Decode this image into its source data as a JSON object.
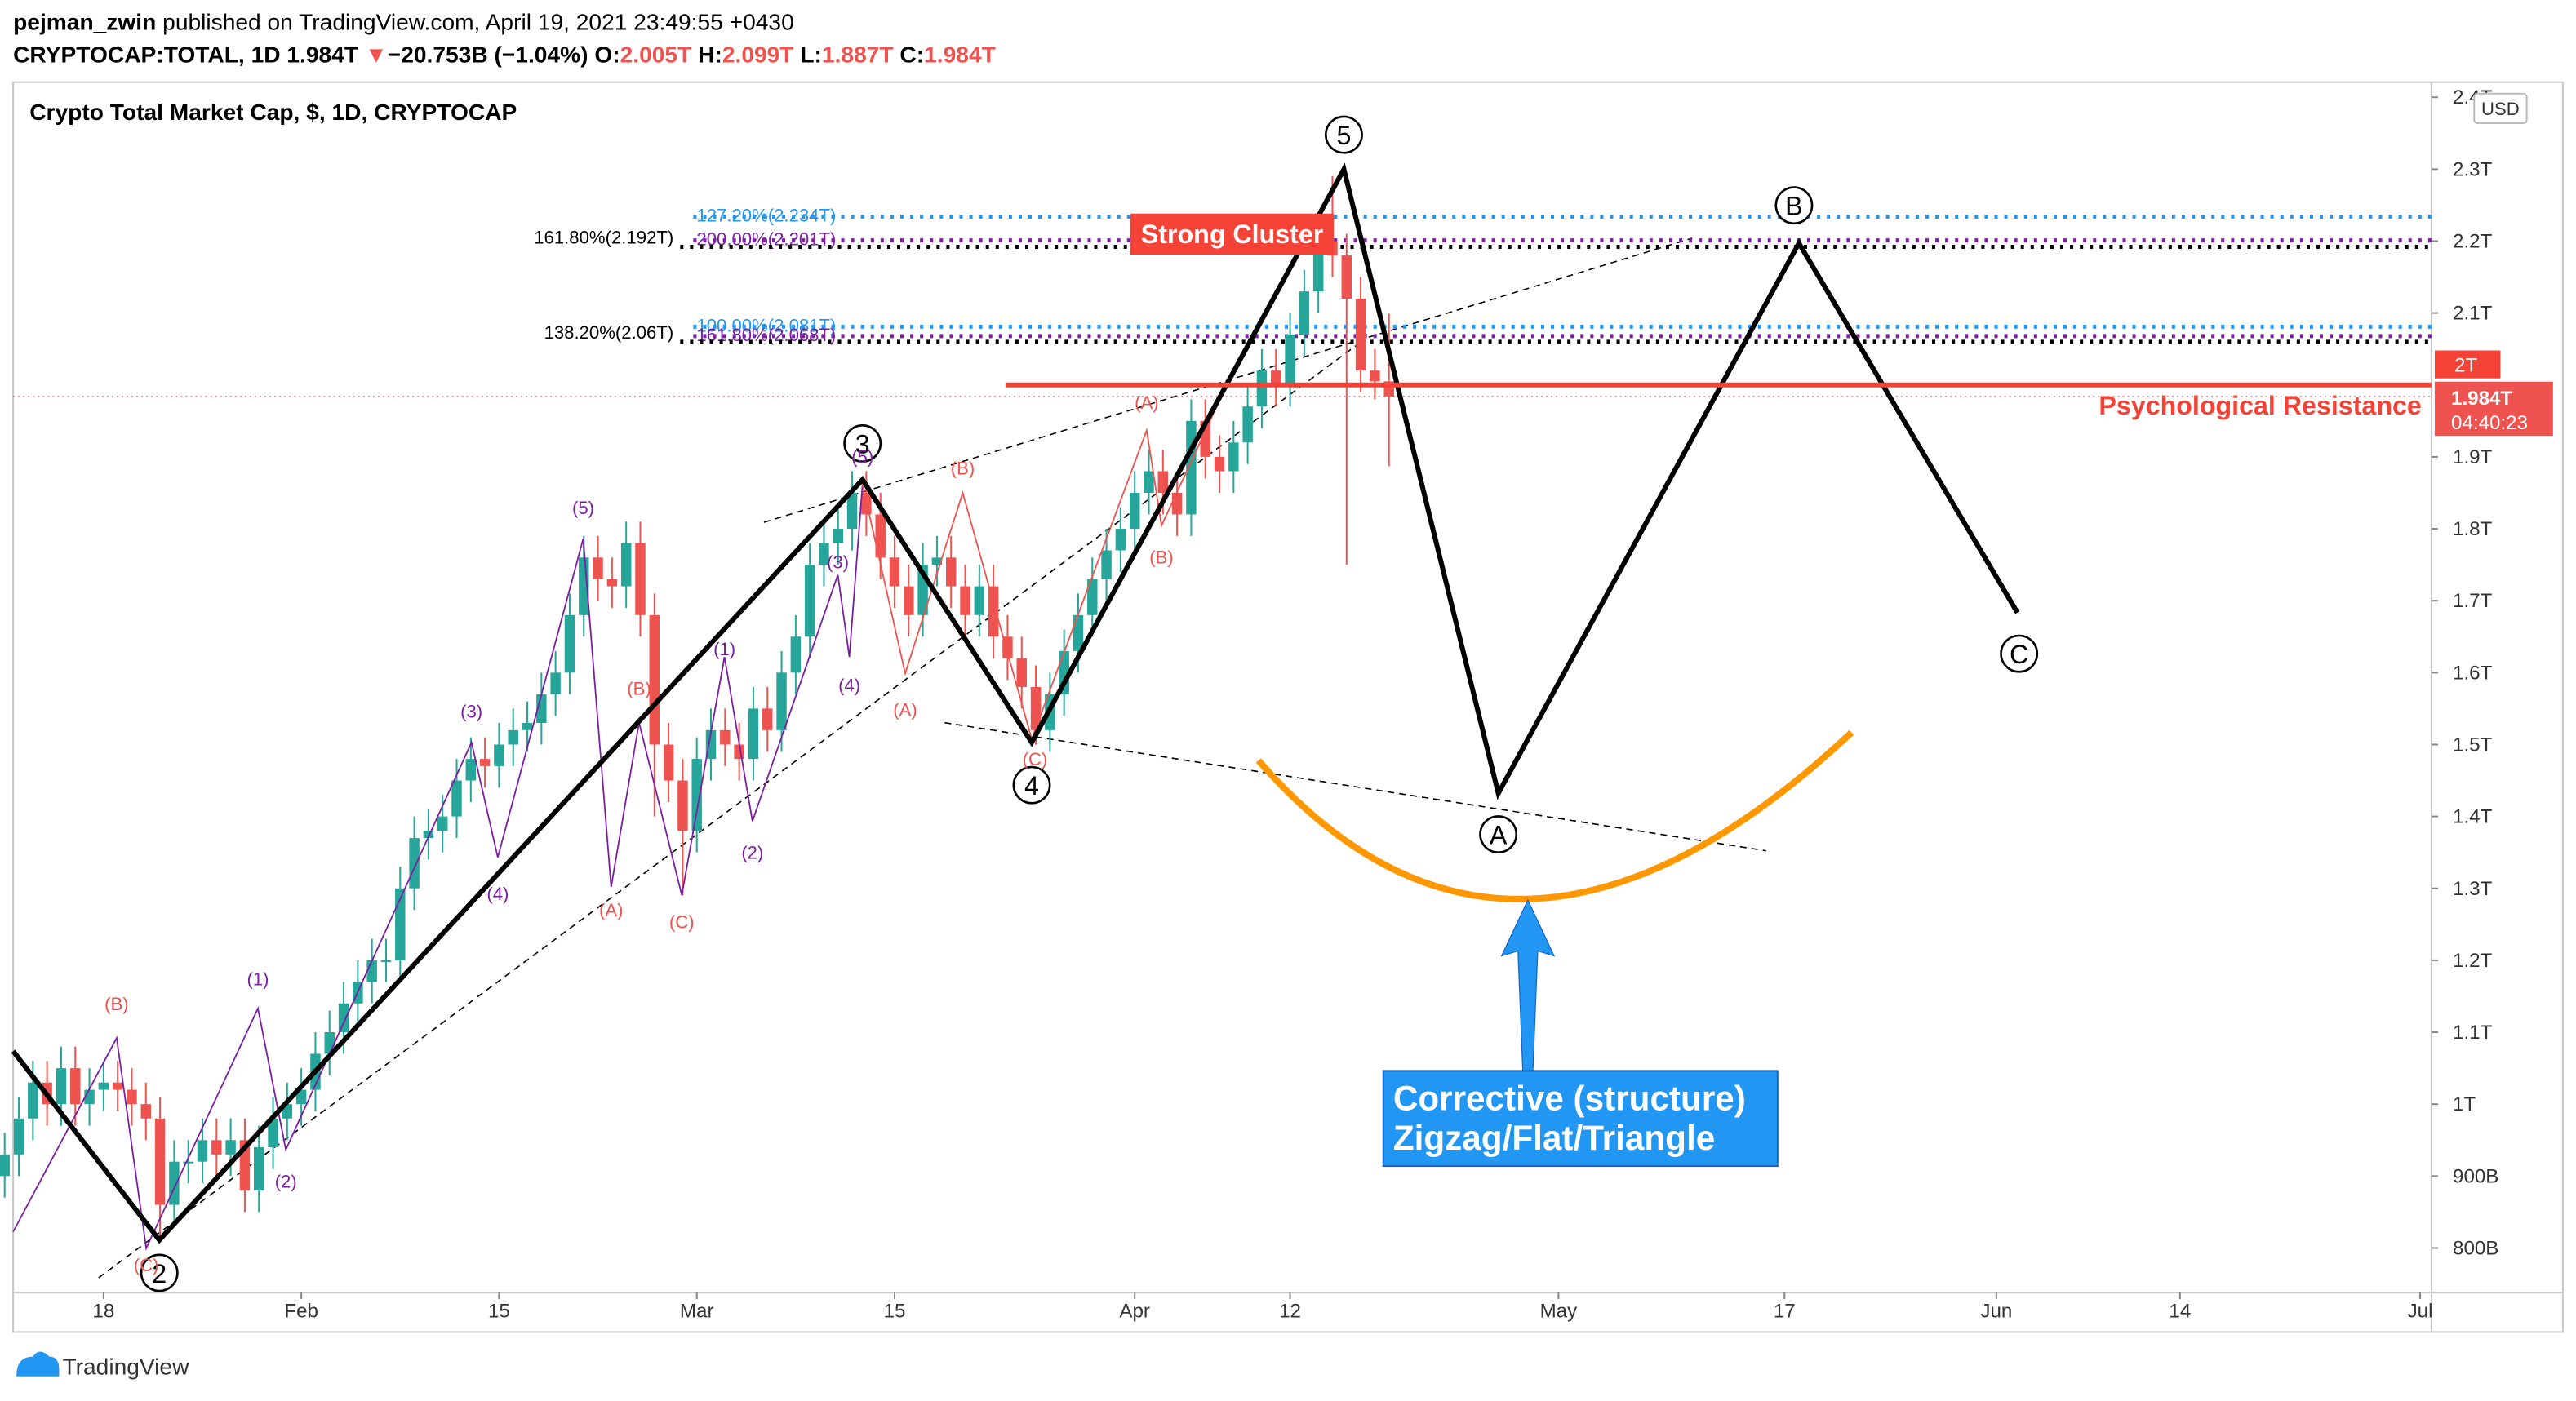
{
  "header": {
    "author": "pejman_zwin",
    "published": "published on TradingView.com, April 19, 2021 23:49:55 +0430",
    "symbol": "CRYPTOCAP:TOTAL, 1D",
    "last": "1.984T",
    "arrow": "▼",
    "change": "−20.753B (−1.04%)",
    "ohlc_keys": [
      "O:",
      "H:",
      "L:",
      "C:"
    ],
    "ohlc_values": [
      "2.005T",
      "2.099T",
      "1.887T",
      "1.984T"
    ]
  },
  "footer": {
    "brand": "TradingView"
  },
  "chart_data": {
    "type": "candlestick",
    "title": "Crypto Total Market Cap, $, 1D, CRYPTOCAP",
    "currency": "USD",
    "up_color": "#26a69a",
    "down_color": "#ef5350",
    "x": [
      10,
      11,
      12,
      13,
      14,
      15,
      16,
      17,
      18,
      19,
      20,
      21,
      22,
      23,
      24,
      25,
      26,
      27,
      28,
      29,
      30,
      31,
      32,
      33,
      34,
      35,
      36,
      37,
      38,
      39,
      40,
      41,
      42,
      43,
      44,
      45,
      46,
      47,
      48,
      49,
      50,
      51,
      52,
      53,
      54,
      55,
      56,
      57,
      58,
      59,
      60,
      61,
      62,
      63,
      64,
      65,
      66,
      67,
      68,
      69,
      70,
      71,
      72,
      73,
      74,
      75,
      76,
      77,
      78,
      79,
      80,
      81,
      82,
      83,
      84,
      85,
      86,
      87,
      88,
      89,
      90,
      91,
      92,
      93,
      94,
      95,
      96,
      97,
      98,
      99,
      100,
      101,
      102,
      103,
      104,
      105,
      106,
      107,
      108
    ],
    "open": [
      0.9,
      0.93,
      0.98,
      1.03,
      1.0,
      1.05,
      1.0,
      1.02,
      1.03,
      1.02,
      1.0,
      0.98,
      0.86,
      0.92,
      0.92,
      0.95,
      0.93,
      0.95,
      0.88,
      0.94,
      0.98,
      1.0,
      1.02,
      1.07,
      1.1,
      1.14,
      1.17,
      1.2,
      1.2,
      1.3,
      1.37,
      1.38,
      1.4,
      1.45,
      1.48,
      1.47,
      1.5,
      1.52,
      1.53,
      1.57,
      1.6,
      1.68,
      1.76,
      1.73,
      1.72,
      1.78,
      1.68,
      1.5,
      1.45,
      1.38,
      1.48,
      1.52,
      1.5,
      1.48,
      1.55,
      1.52,
      1.6,
      1.65,
      1.75,
      1.78,
      1.8,
      1.85,
      1.82,
      1.76,
      1.72,
      1.68,
      1.75,
      1.76,
      1.72,
      1.68,
      1.72,
      1.65,
      1.62,
      1.58,
      1.52,
      1.57,
      1.63,
      1.68,
      1.73,
      1.77,
      1.8,
      1.85,
      1.88,
      1.85,
      1.82,
      1.95,
      1.9,
      1.88,
      1.92,
      1.97,
      2.02,
      2.0,
      2.07,
      2.13,
      2.2,
      2.18,
      2.12,
      2.02,
      2.005
    ],
    "high": [
      0.96,
      1.01,
      1.06,
      1.06,
      1.08,
      1.08,
      1.05,
      1.06,
      1.06,
      1.05,
      1.03,
      1.01,
      0.95,
      0.95,
      0.98,
      0.98,
      0.98,
      0.98,
      0.97,
      1.01,
      1.03,
      1.05,
      1.1,
      1.13,
      1.17,
      1.2,
      1.23,
      1.23,
      1.33,
      1.4,
      1.41,
      1.43,
      1.48,
      1.51,
      1.51,
      1.53,
      1.55,
      1.56,
      1.6,
      1.63,
      1.71,
      1.79,
      1.79,
      1.76,
      1.81,
      1.81,
      1.71,
      1.53,
      1.48,
      1.51,
      1.55,
      1.55,
      1.53,
      1.58,
      1.58,
      1.63,
      1.68,
      1.78,
      1.81,
      1.83,
      1.88,
      1.88,
      1.85,
      1.79,
      1.75,
      1.78,
      1.79,
      1.79,
      1.75,
      1.75,
      1.75,
      1.68,
      1.65,
      1.61,
      1.6,
      1.66,
      1.71,
      1.76,
      1.8,
      1.83,
      1.88,
      1.91,
      1.91,
      1.88,
      1.98,
      1.98,
      1.93,
      1.95,
      2.0,
      2.05,
      2.05,
      2.1,
      2.16,
      2.23,
      2.29,
      2.21,
      2.15,
      2.05,
      2.099
    ],
    "low": [
      0.87,
      0.9,
      0.95,
      0.97,
      0.97,
      0.97,
      0.97,
      0.99,
      0.99,
      0.97,
      0.95,
      0.81,
      0.83,
      0.89,
      0.89,
      0.9,
      0.9,
      0.85,
      0.85,
      0.91,
      0.95,
      0.97,
      0.99,
      1.04,
      1.07,
      1.11,
      1.14,
      1.17,
      1.17,
      1.27,
      1.34,
      1.35,
      1.37,
      1.42,
      1.44,
      1.44,
      1.47,
      1.49,
      1.5,
      1.54,
      1.57,
      1.65,
      1.7,
      1.69,
      1.69,
      1.65,
      1.4,
      1.42,
      1.29,
      1.35,
      1.45,
      1.47,
      1.45,
      1.45,
      1.49,
      1.49,
      1.57,
      1.62,
      1.72,
      1.75,
      1.77,
      1.79,
      1.73,
      1.69,
      1.65,
      1.65,
      1.72,
      1.69,
      1.65,
      1.65,
      1.62,
      1.59,
      1.55,
      1.5,
      1.49,
      1.54,
      1.6,
      1.65,
      1.7,
      1.74,
      1.77,
      1.82,
      1.82,
      1.79,
      1.79,
      1.87,
      1.85,
      1.85,
      1.89,
      1.94,
      1.97,
      1.97,
      2.04,
      2.1,
      2.15,
      1.75,
      1.99,
      1.98,
      1.887
    ],
    "close": [
      0.93,
      0.98,
      1.03,
      1.0,
      1.05,
      1.0,
      1.02,
      1.03,
      1.02,
      1.0,
      0.98,
      0.86,
      0.92,
      0.92,
      0.95,
      0.93,
      0.95,
      0.88,
      0.94,
      0.98,
      1.0,
      1.02,
      1.07,
      1.1,
      1.14,
      1.17,
      1.2,
      1.2,
      1.3,
      1.37,
      1.38,
      1.4,
      1.45,
      1.48,
      1.47,
      1.5,
      1.52,
      1.53,
      1.57,
      1.6,
      1.68,
      1.76,
      1.73,
      1.72,
      1.78,
      1.68,
      1.5,
      1.45,
      1.38,
      1.48,
      1.52,
      1.5,
      1.48,
      1.55,
      1.52,
      1.6,
      1.65,
      1.75,
      1.78,
      1.8,
      1.85,
      1.82,
      1.76,
      1.72,
      1.68,
      1.75,
      1.76,
      1.72,
      1.68,
      1.72,
      1.65,
      1.62,
      1.58,
      1.52,
      1.57,
      1.63,
      1.68,
      1.73,
      1.77,
      1.8,
      1.85,
      1.88,
      1.85,
      1.82,
      1.95,
      1.9,
      1.88,
      1.92,
      1.97,
      2.02,
      2.0,
      2.07,
      2.13,
      2.2,
      2.18,
      2.12,
      2.02,
      2.005,
      1.984
    ],
    "last_label": "1.984T",
    "countdown": "04:40:23",
    "xlim": [
      10.6,
      181.8
    ],
    "xticks": [
      {
        "value": 17,
        "label": "18"
      },
      {
        "value": 31,
        "label": "Feb"
      },
      {
        "value": 45,
        "label": "15"
      },
      {
        "value": 59,
        "label": "Mar"
      },
      {
        "value": 73,
        "label": "15"
      },
      {
        "value": 90,
        "label": "Apr"
      },
      {
        "value": 101,
        "label": "12"
      },
      {
        "value": 120,
        "label": "May"
      },
      {
        "value": 136,
        "label": "17"
      },
      {
        "value": 151,
        "label": "Jun"
      },
      {
        "value": 164,
        "label": "14"
      },
      {
        "value": 181,
        "label": "Jul"
      }
    ],
    "ylim": [
      0.738,
      2.421
    ],
    "yticks": [
      {
        "value": 0.8,
        "label": "800B"
      },
      {
        "value": 0.9,
        "label": "900B"
      },
      {
        "value": 1.0,
        "label": "1T"
      },
      {
        "value": 1.1,
        "label": "1.1T"
      },
      {
        "value": 1.2,
        "label": "1.2T"
      },
      {
        "value": 1.3,
        "label": "1.3T"
      },
      {
        "value": 1.4,
        "label": "1.4T"
      },
      {
        "value": 1.5,
        "label": "1.5T"
      },
      {
        "value": 1.6,
        "label": "1.6T"
      },
      {
        "value": 1.7,
        "label": "1.7T"
      },
      {
        "value": 1.8,
        "label": "1.8T"
      },
      {
        "value": 1.9,
        "label": "1.9T"
      },
      {
        "value": 2.1,
        "label": "2.1T"
      },
      {
        "value": 2.2,
        "label": "2.2T"
      },
      {
        "value": 2.3,
        "label": "2.3T"
      },
      {
        "value": 2.4,
        "label": "2.4T"
      }
    ],
    "resistance": {
      "value": 2.0,
      "label": "2T",
      "color": "#f44336",
      "text": "Psychological Resistance"
    },
    "fib_levels": [
      {
        "label": "127.20%(2.234T)",
        "value": 2.234,
        "color": "#2196f3",
        "side": "left"
      },
      {
        "label": "200.00%(2.201T)",
        "value": 2.201,
        "color": "#7b1fa2",
        "side": "left"
      },
      {
        "label": "161.80%(2.192T)",
        "value": 2.192,
        "color": "#000000",
        "side": "right"
      },
      {
        "label": "100.00%(2.081T)",
        "value": 2.081,
        "color": "#2196f3",
        "side": "left"
      },
      {
        "label": "161.80%(2.068T)",
        "value": 2.068,
        "color": "#7b1fa2",
        "side": "left"
      },
      {
        "label": "138.20%(2.06T)",
        "value": 2.06,
        "color": "#000000",
        "side": "right"
      }
    ],
    "annotations": {
      "cluster": "Strong Cluster",
      "box": [
        "Corrective (structure)",
        "Zigzag/Flat/Triangle"
      ],
      "main_waves": [
        "2",
        "3",
        "4",
        "5",
        "A",
        "B",
        "C"
      ],
      "sub_purple": [
        "(1)",
        "(2)",
        "(3)",
        "(4)",
        "(5)",
        "(1)",
        "(2)",
        "(3)",
        "(4)",
        "(5)"
      ],
      "sub_red": [
        "(B)",
        "(C)",
        "(A)",
        "(B)",
        "(C)",
        "(A)",
        "(B)",
        "(C)",
        "(A)",
        "(B)"
      ]
    }
  }
}
